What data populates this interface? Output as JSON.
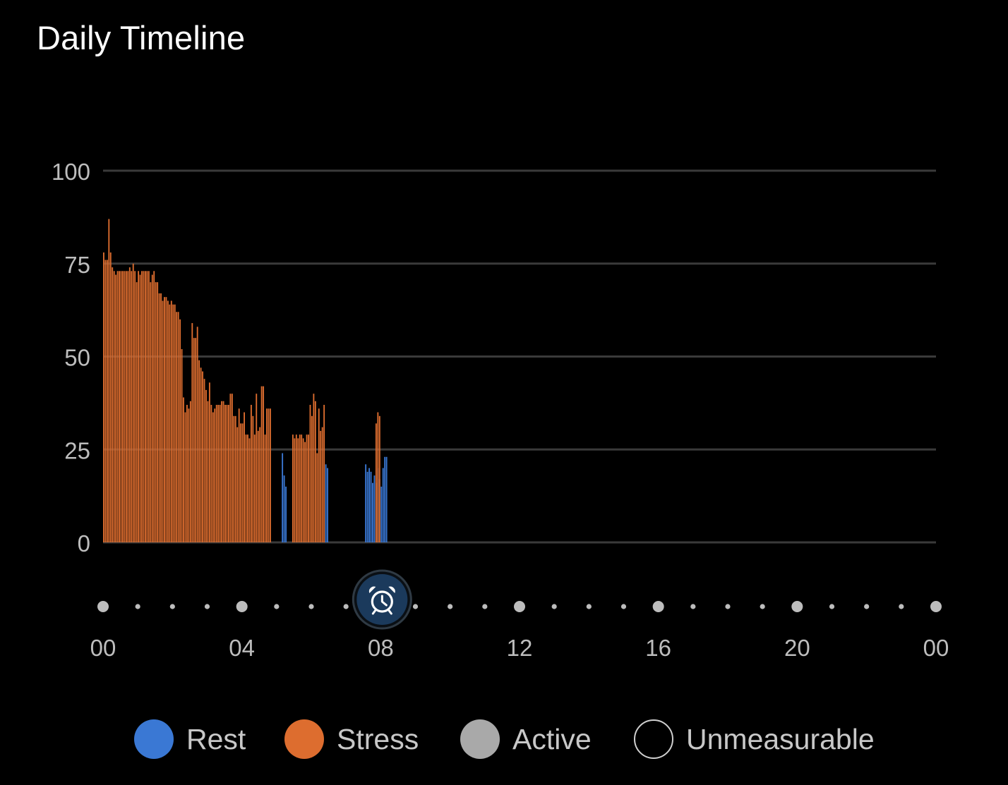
{
  "title": "Daily Timeline",
  "colors": {
    "rest": "#3a78d4",
    "stress": "#dd6d2f",
    "active": "#a9a9a9",
    "background": "#000000",
    "gridline": "#3a3a3a",
    "alarm_badge": "#1b3a5c"
  },
  "alarm_icon": "alarm-clock-icon",
  "legend": [
    {
      "key": "rest",
      "label": "Rest",
      "color": "#3a78d4",
      "style": "filled"
    },
    {
      "key": "stress",
      "label": "Stress",
      "color": "#dd6d2f",
      "style": "filled"
    },
    {
      "key": "active",
      "label": "Active",
      "color": "#a9a9a9",
      "style": "filled"
    },
    {
      "key": "unmeasurable",
      "label": "Unmeasurable",
      "color": "#cfcfcf",
      "style": "outline"
    }
  ],
  "chart_data": {
    "type": "bar",
    "title": "Daily Timeline",
    "xlabel": "",
    "ylabel": "",
    "ylim": [
      0,
      100
    ],
    "yticks": [
      "0",
      "25",
      "50",
      "75",
      "100"
    ],
    "xlim_hours": [
      0,
      24
    ],
    "xticks": [
      "00",
      "04",
      "08",
      "12",
      "16",
      "20",
      "00"
    ],
    "grid": true,
    "legend_position": "bottom",
    "bar_interval_minutes": 3,
    "alarm_time": "08:00",
    "segments": [
      {
        "series": "Stress",
        "start": "00:00",
        "values": [
          78,
          76,
          76,
          87,
          78,
          74,
          73,
          72,
          73,
          73,
          73,
          73,
          73,
          73,
          73,
          74,
          73,
          75,
          73,
          70,
          73,
          72,
          73,
          73,
          73,
          73,
          73,
          70,
          72,
          73,
          70,
          70,
          67,
          67,
          65,
          66,
          66,
          65,
          64,
          65,
          64,
          64,
          62,
          62,
          60,
          52,
          39,
          35,
          37,
          36,
          38,
          59,
          55,
          55,
          58,
          49,
          47,
          46,
          44,
          41,
          38,
          43,
          37,
          35,
          36,
          37,
          37,
          37,
          38,
          38,
          37,
          37,
          37,
          40,
          40,
          34,
          34,
          31,
          36,
          32,
          32,
          35,
          29,
          29,
          28,
          37,
          34,
          29,
          40,
          30,
          31,
          42,
          42,
          29,
          36,
          36,
          36
        ]
      },
      {
        "series": "Rest",
        "start": "04:51",
        "values": [
          0,
          0,
          0,
          0,
          0,
          0,
          24,
          18,
          15
        ]
      },
      {
        "series": "Stress",
        "start": "05:27",
        "values": [
          29,
          28,
          29,
          28,
          29,
          29,
          28,
          27,
          29,
          29,
          37,
          34,
          40,
          38,
          24,
          36,
          30,
          31,
          37
        ]
      },
      {
        "series": "Rest",
        "start": "06:24",
        "values": [
          21,
          20
        ]
      },
      {
        "series": "Rest",
        "start": "07:33",
        "values": [
          21,
          19,
          20,
          19,
          16,
          18,
          16,
          20,
          17,
          15,
          20,
          23,
          23
        ]
      },
      {
        "series": "Stress",
        "start": "07:51",
        "values": [
          32,
          35,
          34
        ]
      }
    ]
  }
}
